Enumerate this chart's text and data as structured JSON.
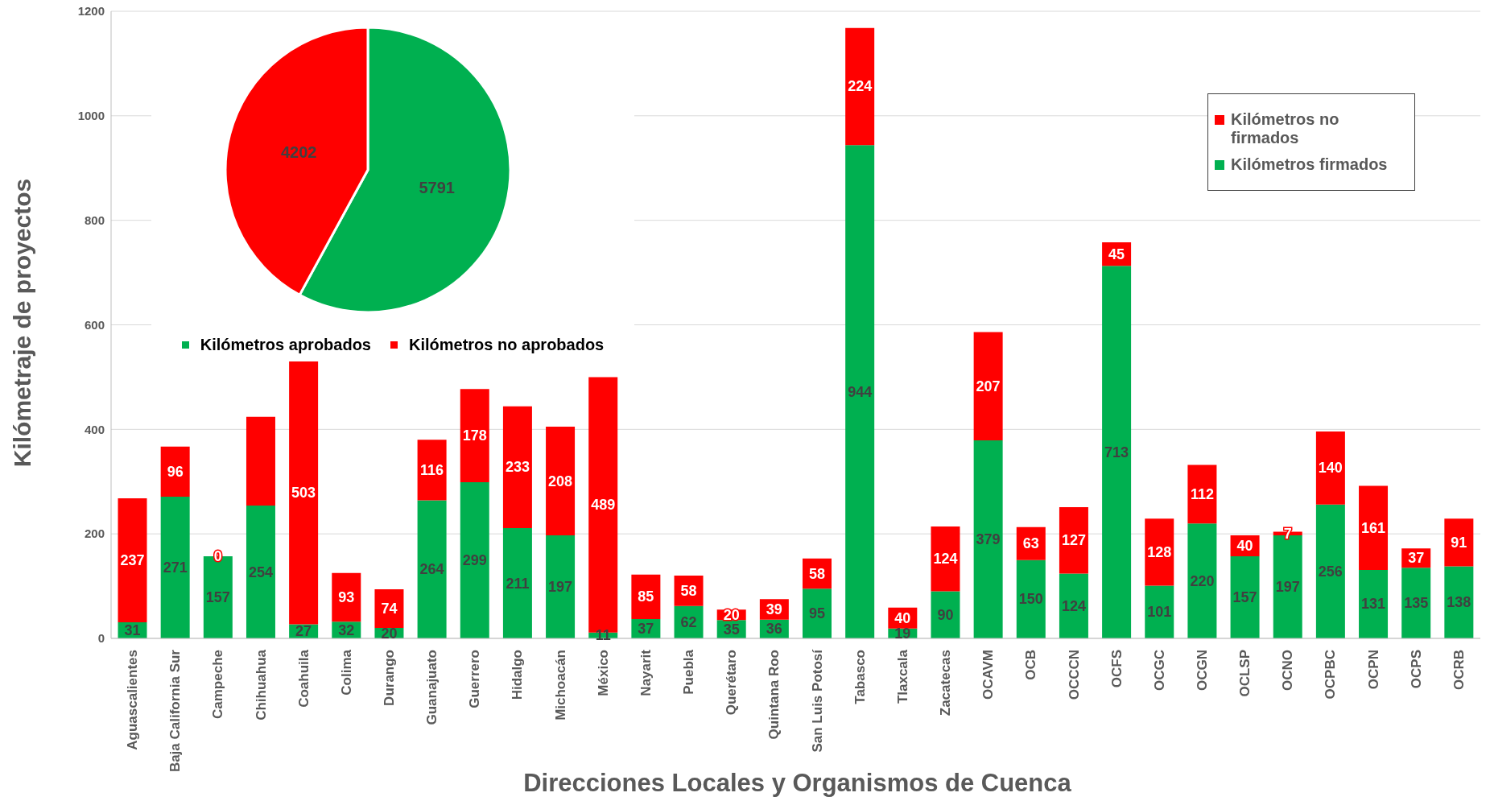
{
  "chart_data": [
    {
      "type": "bar",
      "stacked": true,
      "xlabel": "Direcciones Locales y Organismos de Cuenca",
      "ylabel": "Kilómetraje de proyectos",
      "categories": [
        "Aguascalientes",
        "Baja California Sur",
        "Campeche",
        "Chihuahua",
        "Coahuila",
        "Colima",
        "Durango",
        "Guanajuato",
        "Guerrero",
        "Hidalgo",
        "Michoacán",
        "México",
        "Nayarit",
        "Puebla",
        "Querétaro",
        "Quintana Roo",
        "San Luis Potosí",
        "Tabasco",
        "Tlaxcala",
        "Zacatecas",
        "OCAVM",
        "OCB",
        "OCCCN",
        "OCFS",
        "OCGC",
        "OCGN",
        "OCLSP",
        "OCNO",
        "OCPBC",
        "OCPN",
        "OCPS",
        "OCRB"
      ],
      "series": [
        {
          "name": "Kilómetros firmados",
          "color": "#00b050",
          "values": [
            31,
            271,
            157,
            254,
            27,
            32,
            20,
            264,
            299,
            211,
            197,
            11,
            37,
            62,
            35,
            36,
            95,
            944,
            19,
            90,
            379,
            150,
            124,
            713,
            101,
            220,
            157,
            197,
            256,
            131,
            135,
            138
          ],
          "value_labels": [
            "31",
            "271",
            "157",
            "254",
            "27",
            "32",
            "20",
            "264",
            "299",
            "211",
            "197",
            "11",
            "37",
            "62",
            "35",
            "36",
            "95",
            "944",
            "19",
            "90",
            "379",
            "150",
            "124",
            "713",
            "101",
            "220",
            "157",
            "197",
            "256",
            "131",
            "135",
            "138"
          ]
        },
        {
          "name": "Kilómetros no firmados",
          "color": "#ff0000",
          "values": [
            237,
            96,
            0,
            170,
            503,
            93,
            74,
            116,
            178,
            233,
            208,
            489,
            85,
            58,
            20,
            39,
            58,
            224,
            40,
            124,
            207,
            63,
            127,
            45,
            128,
            112,
            40,
            7,
            140,
            161,
            37,
            91
          ],
          "value_labels": [
            "237",
            "96",
            "0",
            null,
            "503",
            "93",
            "74",
            "116",
            "178",
            "233",
            "208",
            "489",
            "85",
            "58",
            "20",
            "39",
            "58",
            "224",
            "40",
            "124",
            "207",
            "63",
            "127",
            "45",
            "128",
            "112",
            "40",
            "7",
            "140",
            "161",
            "37",
            "91"
          ]
        }
      ],
      "ylim": [
        0,
        1200
      ],
      "yticks": [
        0,
        200,
        400,
        600,
        800,
        1000,
        1200
      ],
      "grid": "y",
      "legend": "top right"
    },
    {
      "type": "pie",
      "categories": [
        "Kilómetros aprobados",
        "Kilómetros no aprobados"
      ],
      "values": [
        5791,
        4202
      ],
      "colors": [
        "#00b050",
        "#ff0000"
      ],
      "data_labels": true,
      "legend": "bottom"
    }
  ]
}
